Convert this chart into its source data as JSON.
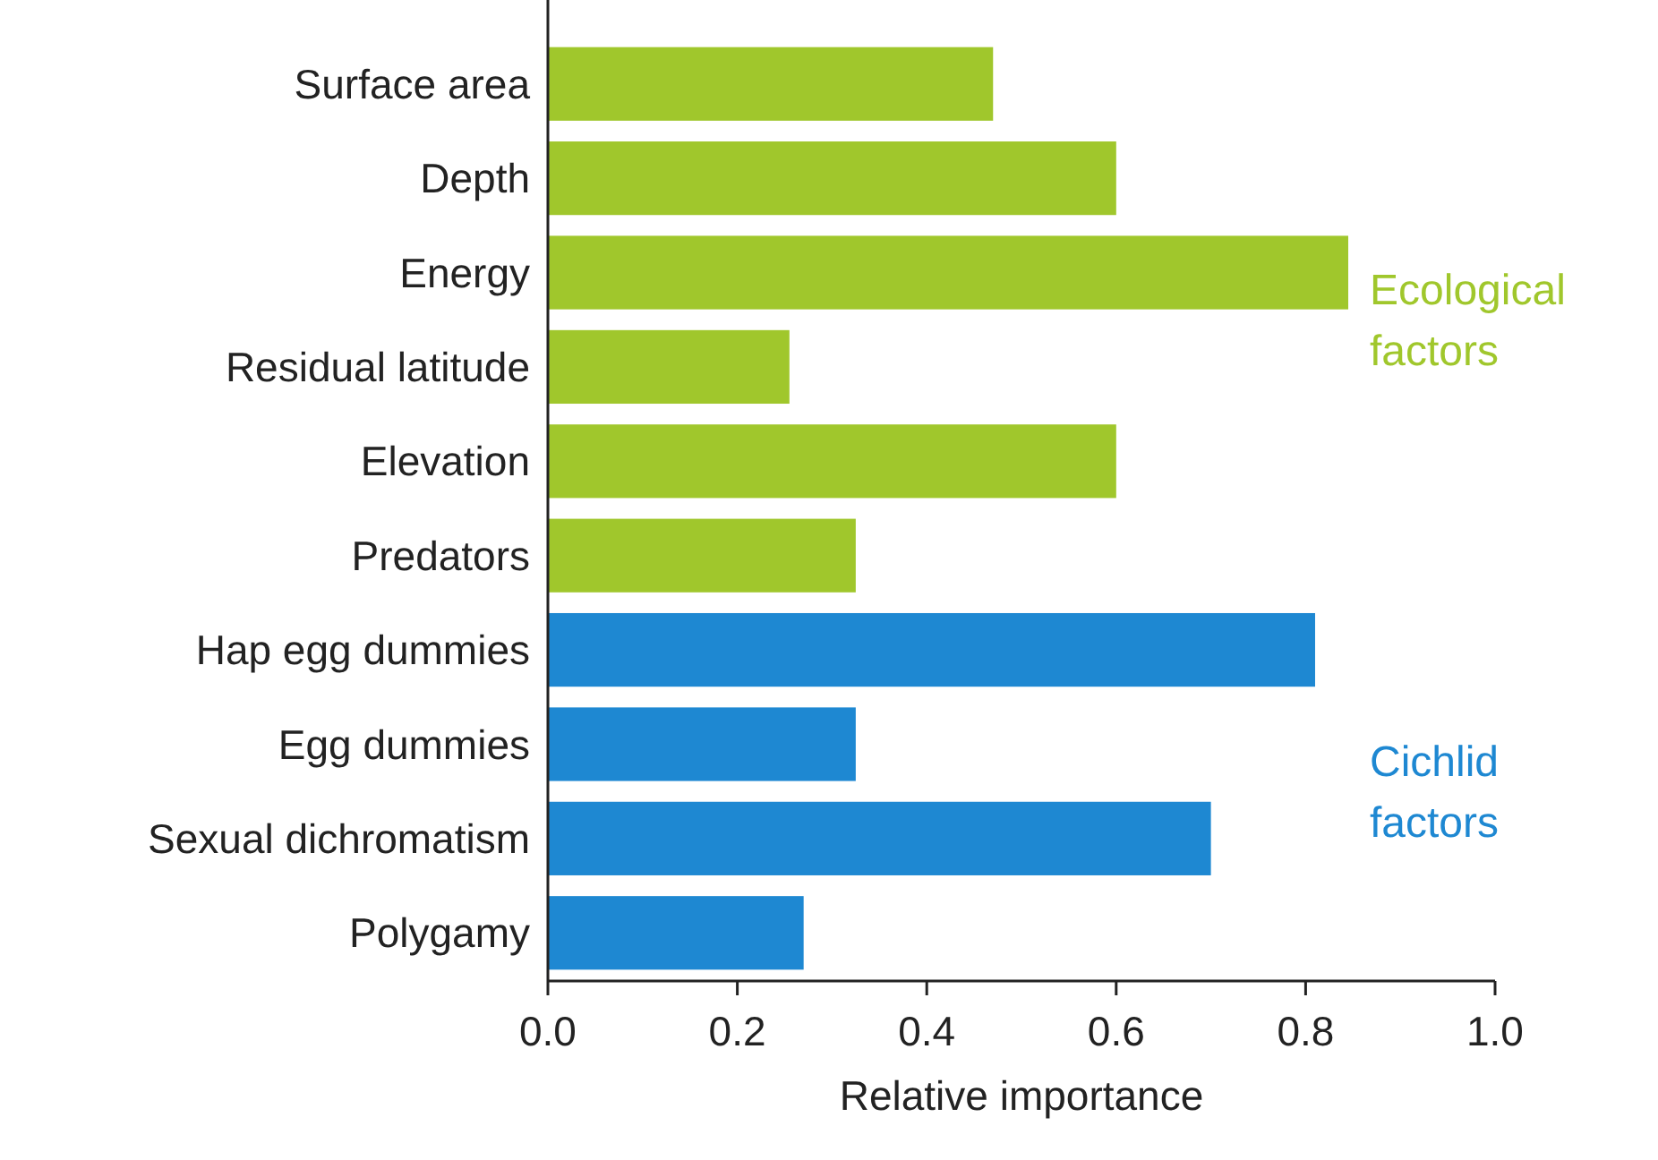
{
  "chart_data": {
    "type": "bar",
    "orientation": "horizontal",
    "stacked": true,
    "xlabel": "Relative importance",
    "categories": [
      "Surface area",
      "Depth",
      "Energy",
      "Residual latitude",
      "Elevation",
      "Predators",
      "Hap egg dummies",
      "Egg dummies",
      "Sexual dichromatism",
      "Polygamy"
    ],
    "series": [
      {
        "name": "Ecological factors",
        "color": "#a0c72c",
        "values": [
          0.47,
          0.6,
          0.845,
          0.255,
          0.6,
          0.325,
          null,
          null,
          null,
          null
        ]
      },
      {
        "name": "Cichlid factors",
        "color": "#1e88d2",
        "values": [
          null,
          null,
          null,
          null,
          null,
          null,
          0.81,
          0.325,
          0.7,
          0.27
        ]
      }
    ],
    "xlim": [
      0,
      1
    ],
    "xticks": [
      {
        "value": 0,
        "label": "0.0"
      },
      {
        "value": 0.2,
        "label": "0.2"
      },
      {
        "value": 0.4,
        "label": "0.4"
      },
      {
        "value": 0.6,
        "label": "0.6"
      },
      {
        "value": 0.8,
        "label": "0.8"
      },
      {
        "value": 1,
        "label": "1.0"
      }
    ],
    "grid": false
  }
}
